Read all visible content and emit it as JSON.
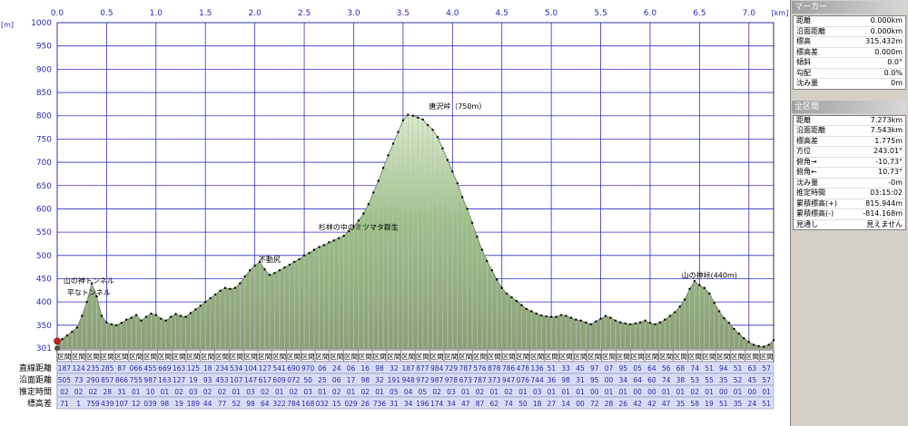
{
  "chart_data": {
    "type": "area",
    "x_unit_label": "[km]",
    "y_unit_label": "[m]",
    "xlim": [
      0,
      7.25
    ],
    "ylim": [
      301,
      1000
    ],
    "x_ticks": [
      "0.0",
      "0.5",
      "1.0",
      "1.5",
      "2.0",
      "2.5",
      "3.0",
      "3.5",
      "4.0",
      "4.5",
      "5.0",
      "5.5",
      "6.0",
      "6.5",
      "7.0"
    ],
    "y_ticks": [
      "1000",
      "950",
      "900",
      "850",
      "800",
      "750",
      "700",
      "650",
      "600",
      "550",
      "500",
      "450",
      "400",
      "350",
      "301"
    ],
    "grid": true,
    "fill_color": "#9cc287",
    "grid_color": "#3030c8",
    "x": [
      0.0,
      0.05,
      0.1,
      0.15,
      0.2,
      0.25,
      0.3,
      0.35,
      0.4,
      0.45,
      0.5,
      0.55,
      0.6,
      0.65,
      0.7,
      0.75,
      0.8,
      0.85,
      0.9,
      0.95,
      1.0,
      1.05,
      1.1,
      1.15,
      1.2,
      1.25,
      1.3,
      1.35,
      1.4,
      1.45,
      1.5,
      1.55,
      1.6,
      1.65,
      1.7,
      1.75,
      1.8,
      1.85,
      1.9,
      1.95,
      2.0,
      2.05,
      2.1,
      2.15,
      2.2,
      2.25,
      2.3,
      2.35,
      2.4,
      2.45,
      2.5,
      2.55,
      2.6,
      2.65,
      2.7,
      2.75,
      2.8,
      2.85,
      2.9,
      2.95,
      3.0,
      3.05,
      3.1,
      3.15,
      3.2,
      3.25,
      3.3,
      3.35,
      3.4,
      3.45,
      3.5,
      3.55,
      3.6,
      3.65,
      3.7,
      3.75,
      3.8,
      3.85,
      3.9,
      3.95,
      4.0,
      4.05,
      4.1,
      4.15,
      4.2,
      4.25,
      4.3,
      4.35,
      4.4,
      4.45,
      4.5,
      4.55,
      4.6,
      4.65,
      4.7,
      4.75,
      4.8,
      4.85,
      4.9,
      4.95,
      5.0,
      5.05,
      5.1,
      5.15,
      5.2,
      5.25,
      5.3,
      5.35,
      5.4,
      5.45,
      5.5,
      5.55,
      5.6,
      5.65,
      5.7,
      5.75,
      5.8,
      5.85,
      5.9,
      5.95,
      6.0,
      6.05,
      6.1,
      6.15,
      6.2,
      6.25,
      6.3,
      6.35,
      6.4,
      6.45,
      6.5,
      6.55,
      6.6,
      6.65,
      6.7,
      6.75,
      6.8,
      6.85,
      6.9,
      6.95,
      7.0,
      7.05,
      7.1,
      7.15,
      7.2,
      7.25
    ],
    "y": [
      316,
      320,
      328,
      336,
      345,
      370,
      400,
      440,
      412,
      370,
      356,
      352,
      350,
      355,
      362,
      366,
      372,
      360,
      368,
      375,
      372,
      364,
      360,
      368,
      374,
      370,
      368,
      376,
      384,
      392,
      400,
      408,
      416,
      424,
      430,
      428,
      430,
      440,
      455,
      468,
      478,
      486,
      470,
      458,
      462,
      468,
      474,
      480,
      486,
      492,
      500,
      505,
      512,
      518,
      522,
      528,
      532,
      537,
      542,
      552,
      562,
      575,
      590,
      610,
      635,
      660,
      688,
      715,
      740,
      765,
      790,
      802,
      800,
      796,
      792,
      780,
      770,
      754,
      730,
      705,
      680,
      655,
      625,
      600,
      570,
      540,
      512,
      488,
      468,
      448,
      430,
      418,
      410,
      402,
      393,
      385,
      380,
      375,
      371,
      369,
      368,
      368,
      372,
      370,
      366,
      362,
      360,
      356,
      352,
      358,
      364,
      370,
      366,
      360,
      356,
      354,
      352,
      354,
      356,
      360,
      355,
      352,
      356,
      362,
      370,
      378,
      390,
      405,
      428,
      445,
      436,
      430,
      418,
      398,
      380,
      365,
      355,
      342,
      332,
      322,
      314,
      308,
      305,
      304,
      308,
      318
    ],
    "annotations": [
      {
        "text": "山の神トンネル",
        "x": 0.32,
        "y": 440
      },
      {
        "text": "平なトンネル",
        "x": 0.32,
        "y": 415
      },
      {
        "text": "不動尻",
        "x": 2.15,
        "y": 486
      },
      {
        "text": "杉林の中のミツマタ群生",
        "x": 3.05,
        "y": 555
      },
      {
        "text": "唐沢峠（750m）",
        "x": 4.05,
        "y": 815
      },
      {
        "text": "山の神峠(440m)",
        "x": 6.6,
        "y": 452
      }
    ],
    "segment_table": {
      "row_labels": [
        "直線距離",
        "沿面距離",
        "推定時間",
        "標高差"
      ],
      "column_labels": [
        "区間",
        "区間",
        "区間",
        "区間",
        "区間",
        "区間",
        "区間",
        "区間",
        "区間",
        "区間",
        "区間",
        "区間",
        "区間",
        "区間",
        "区間",
        "区間",
        "区間",
        "区間",
        "区間",
        "区間",
        "区間",
        "区間",
        "区間",
        "区間",
        "区間",
        "区間",
        "区間",
        "区間",
        "区間",
        "区間",
        "区間",
        "区間",
        "区間",
        "区間",
        "区間",
        "区間",
        "区間",
        "区間",
        "区間",
        "区間",
        "区間",
        "区間",
        "区間",
        "区間",
        "区間",
        "区間",
        "区間",
        "区間",
        "区間",
        "区間"
      ],
      "rows": [
        [
          "187",
          "124",
          "235",
          "285",
          "87",
          "066",
          "455",
          "669",
          "163",
          "125",
          "18",
          "234",
          "534",
          "104",
          "127",
          "541",
          "690",
          "970",
          "06",
          "24",
          "06",
          "16",
          "98",
          "32",
          "187",
          "877",
          "984",
          "729",
          "787",
          "576",
          "878",
          "786",
          "478",
          "136",
          "51",
          "33",
          "45",
          "97",
          "07",
          "95",
          "05",
          "64",
          "56",
          "68",
          "74",
          "51",
          "94",
          "51",
          "63",
          "57"
        ],
        [
          "505",
          "73",
          "290",
          "857",
          "866",
          "755",
          "987",
          "163",
          "127",
          "19",
          "93",
          "453",
          "107",
          "147",
          "617",
          "609",
          "072",
          "50",
          "25",
          "06",
          "17",
          "98",
          "32",
          "191",
          "948",
          "972",
          "987",
          "978",
          "673",
          "787",
          "373",
          "947",
          "076",
          "744",
          "36",
          "98",
          "31",
          "95",
          "00",
          "34",
          "64",
          "60",
          "74",
          "38",
          "53",
          "55",
          "35",
          "52",
          "45",
          "57"
        ],
        [
          "02",
          "02",
          "02",
          "28",
          "31",
          "01",
          "10",
          "01",
          "02",
          "03",
          "02",
          "02",
          "01",
          "03",
          "02",
          "01",
          "02",
          "03",
          "01",
          "02",
          "01",
          "02",
          "01",
          "05",
          "04",
          "05",
          "02",
          "03",
          "01",
          "02",
          "01",
          "02",
          "01",
          "03",
          "01",
          "01",
          "01",
          "00",
          "01",
          "01",
          "00",
          "00",
          "01",
          "01",
          "02",
          "01",
          "00",
          "01",
          "00",
          "01"
        ],
        [
          "71",
          "1",
          "759",
          "439",
          "107",
          "12",
          "039",
          "98",
          "19",
          "189",
          "44",
          "77",
          "52",
          "98",
          "64",
          "322",
          "784",
          "168",
          "032",
          "15",
          "029",
          "26",
          "736",
          "31",
          "34",
          "196",
          "174",
          "34",
          "47",
          "87",
          "62",
          "74",
          "50",
          "18",
          "27",
          "14",
          "00",
          "72",
          "28",
          "26",
          "42",
          "42",
          "47",
          "35",
          "58",
          "19",
          "51",
          "35",
          "24",
          "51"
        ]
      ]
    }
  },
  "side_panel": {
    "marker_title": "マーカー",
    "marker_rows": [
      {
        "label": "距離",
        "value": "0.000km"
      },
      {
        "label": "沿面距離",
        "value": "0.000km"
      },
      {
        "label": "標高",
        "value": "315.432m"
      },
      {
        "label": "標高差",
        "value": "0.000m"
      },
      {
        "label": "傾斜",
        "value": "0.0°"
      },
      {
        "label": "勾配",
        "value": "0.0%"
      },
      {
        "label": "沈み量",
        "value": "0m"
      }
    ],
    "section_title": "全区間",
    "section_rows": [
      {
        "label": "距離",
        "value": "7.273km"
      },
      {
        "label": "沿面距離",
        "value": "7.543km"
      },
      {
        "label": "標高差",
        "value": "1.775m"
      },
      {
        "label": "方位",
        "value": "243.01°"
      },
      {
        "label": "俯角→",
        "value": "-10.73°"
      },
      {
        "label": "俯角←",
        "value": "10.73°"
      },
      {
        "label": "沈み量",
        "value": "-0m"
      },
      {
        "label": "推定時間",
        "value": "03:15:02"
      },
      {
        "label": "累積標高(+)",
        "value": "815.944m"
      },
      {
        "label": "累積標高(-)",
        "value": "-814.168m"
      },
      {
        "label": "見通し",
        "value": "見えません"
      }
    ]
  }
}
